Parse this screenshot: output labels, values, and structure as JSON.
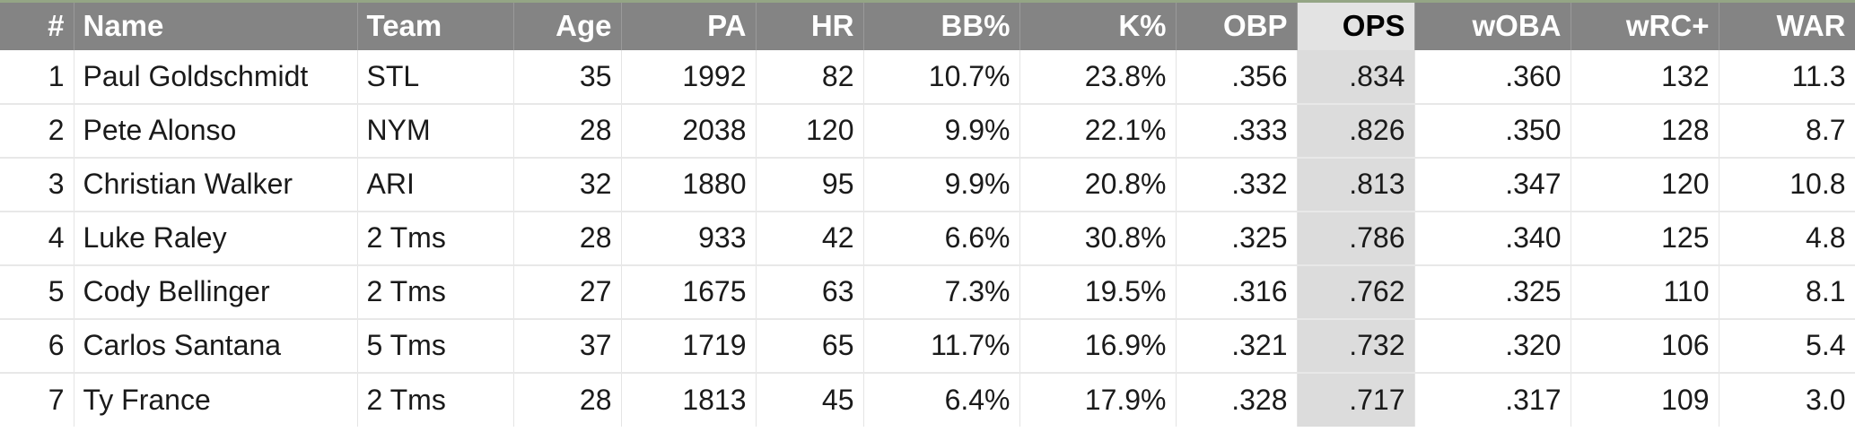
{
  "chart_data": {
    "type": "table",
    "columns": [
      "#",
      "Name",
      "Team",
      "Age",
      "PA",
      "HR",
      "BB%",
      "K%",
      "OBP",
      "OPS",
      "wOBA",
      "wRC+",
      "WAR"
    ],
    "sorted_column": "OPS",
    "rows": [
      [
        "1",
        "Paul Goldschmidt",
        "STL",
        "35",
        "1992",
        "82",
        "10.7%",
        "23.8%",
        ".356",
        ".834",
        ".360",
        "132",
        "11.3"
      ],
      [
        "2",
        "Pete Alonso",
        "NYM",
        "28",
        "2038",
        "120",
        "9.9%",
        "22.1%",
        ".333",
        ".826",
        ".350",
        "128",
        "8.7"
      ],
      [
        "3",
        "Christian Walker",
        "ARI",
        "32",
        "1880",
        "95",
        "9.9%",
        "20.8%",
        ".332",
        ".813",
        ".347",
        "120",
        "10.8"
      ],
      [
        "4",
        "Luke Raley",
        "2 Tms",
        "28",
        "933",
        "42",
        "6.6%",
        "30.8%",
        ".325",
        ".786",
        ".340",
        "125",
        "4.8"
      ],
      [
        "5",
        "Cody Bellinger",
        "2 Tms",
        "27",
        "1675",
        "63",
        "7.3%",
        "19.5%",
        ".316",
        ".762",
        ".325",
        "110",
        "8.1"
      ],
      [
        "6",
        "Carlos Santana",
        "5 Tms",
        "37",
        "1719",
        "65",
        "11.7%",
        "16.9%",
        ".321",
        ".732",
        ".320",
        "106",
        "5.4"
      ],
      [
        "7",
        "Ty France",
        "2 Tms",
        "28",
        "1813",
        "45",
        "6.4%",
        "17.9%",
        ".328",
        ".717",
        ".317",
        "109",
        "3.0"
      ]
    ]
  }
}
